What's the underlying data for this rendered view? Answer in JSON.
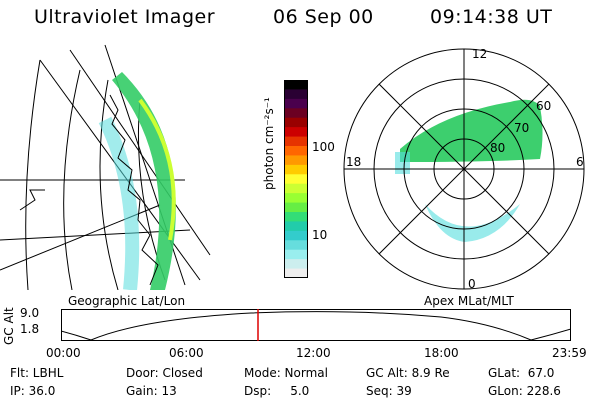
{
  "header": {
    "instrument": "Ultraviolet Imager",
    "date": "06 Sep 00",
    "time": "09:14:38 UT"
  },
  "geo_panel": {
    "label": "Geographic Lat/Lon"
  },
  "colorbar": {
    "unit_label": "photon cm⁻²s⁻¹",
    "ticks": [
      "100",
      "10"
    ],
    "colors": [
      "#000000",
      "#2a0033",
      "#4a004d",
      "#6b0022",
      "#990000",
      "#cc0000",
      "#e63300",
      "#ff6600",
      "#ff9900",
      "#ffcc00",
      "#ffff33",
      "#ccff33",
      "#99ff33",
      "#66ee44",
      "#33dd77",
      "#22ccaa",
      "#33cccc",
      "#66dddd",
      "#99eeee",
      "#cceeee",
      "#eeeeee"
    ]
  },
  "polar_panel": {
    "label": "Apex MLat/MLT",
    "mlt_labels": [
      "12",
      "18",
      "6",
      "0"
    ],
    "lat_labels": [
      "60",
      "70",
      "80"
    ]
  },
  "orbit": {
    "axis_label": "GC Alt",
    "y_ticks": [
      "9.0",
      "1.8"
    ],
    "x_ticks": [
      "00:00",
      "06:00",
      "12:00",
      "18:00",
      "23:59"
    ],
    "marker_color": "#dd0000"
  },
  "info": {
    "flt": "Flt: LBHL",
    "ip": "IP: 36.0",
    "door": "Door: Closed",
    "gain": "Gain: 13",
    "mode": "Mode: Normal",
    "dsp": "Dsp:     5.0",
    "gc_alt": "GC Alt: 8.9 Re",
    "seq": "Seq: 39",
    "glat": "GLat:  67.0",
    "glon": "GLon: 228.6"
  }
}
